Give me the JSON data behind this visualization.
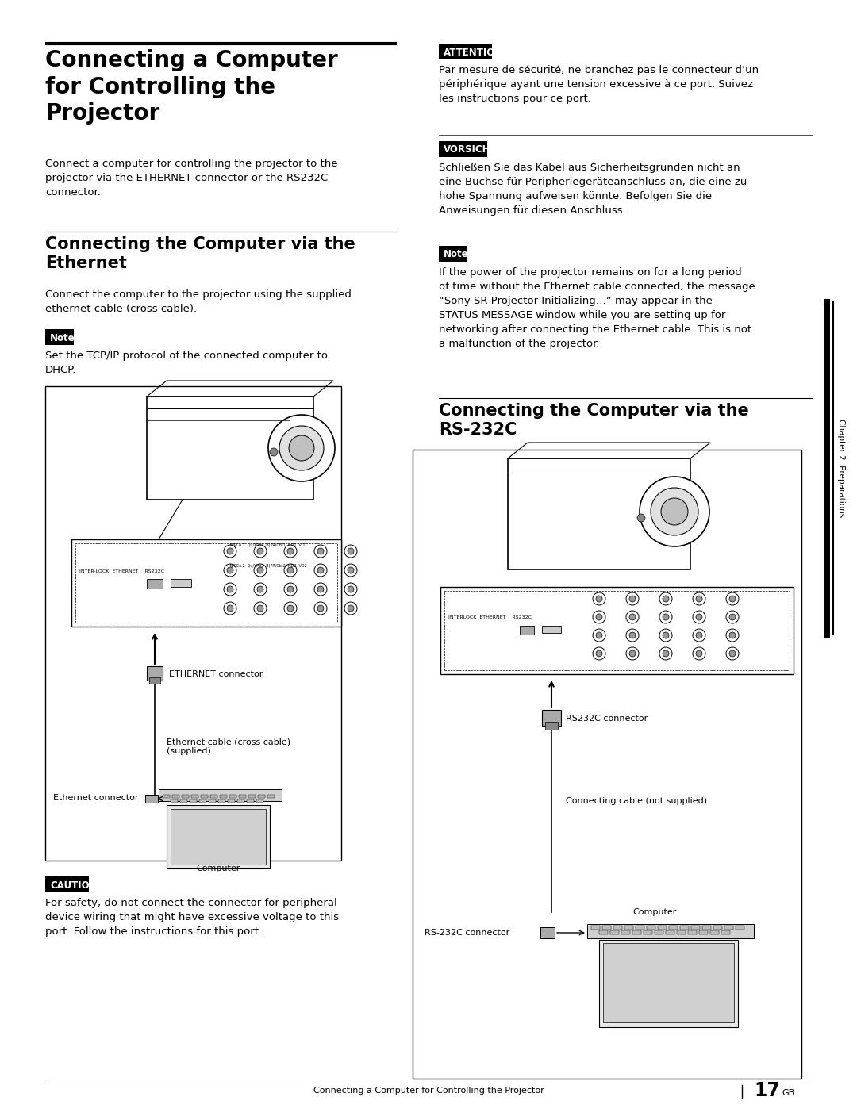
{
  "page_width": 10.8,
  "page_height": 13.97,
  "bg_color": "#ffffff",
  "main_title": "Connecting a Computer\nfor Controlling the\nProjector",
  "intro_text": "Connect a computer for controlling the projector to the\nprojector via the ETHERNET connector or the RS232C\nconnector.",
  "eth_title": "Connecting the Computer via the\nEthernet",
  "eth_desc": "Connect the computer to the projector using the supplied\nethernet cable (cross cable).",
  "note1_label": "Note",
  "note1_text": "Set the TCP/IP protocol of the connected computer to\nDHCP.",
  "caution_label": "CAUTION",
  "caution_text": "For safety, do not connect the connector for peripheral\ndevice wiring that might have excessive voltage to this\nport. Follow the instructions for this port.",
  "attn_label": "ATTENTION",
  "attn_text": "Par mesure de sécurité, ne branchez pas le connecteur d’un\npériphérique ayant une tension excessive à ce port. Suivez\nles instructions pour ce port.",
  "vorsicht_label": "VORSICHT",
  "vorsicht_text": "Schließen Sie das Kabel aus Sicherheitsgründen nicht an\neine Buchse für Peripheriegeräteanschluss an, die eine zu\nhohe Spannung aufweisen könnte. Befolgen Sie die\nAnweisungen für diesen Anschluss.",
  "note2_label": "Note",
  "note2_text": "If the power of the projector remains on for a long period\nof time without the Ethernet cable connected, the message\n“Sony SR Projector Initializing…” may appear in the\nSTATUS MESSAGE window while you are setting up for\nnetworking after connecting the Ethernet cable. This is not\na malfunction of the projector.",
  "rs232_title": "Connecting the Computer via the\nRS-232C",
  "footer_text": "Connecting a Computer for Controlling the Projector",
  "footer_page": "17",
  "footer_gb": "GB",
  "sidebar_text": "Chapter 2  Preparations",
  "body_fontsize": 9.5,
  "title_fontsize": 15,
  "main_title_fontsize": 20,
  "label_fontsize": 8.5,
  "diagram_label_fontsize": 8.0
}
